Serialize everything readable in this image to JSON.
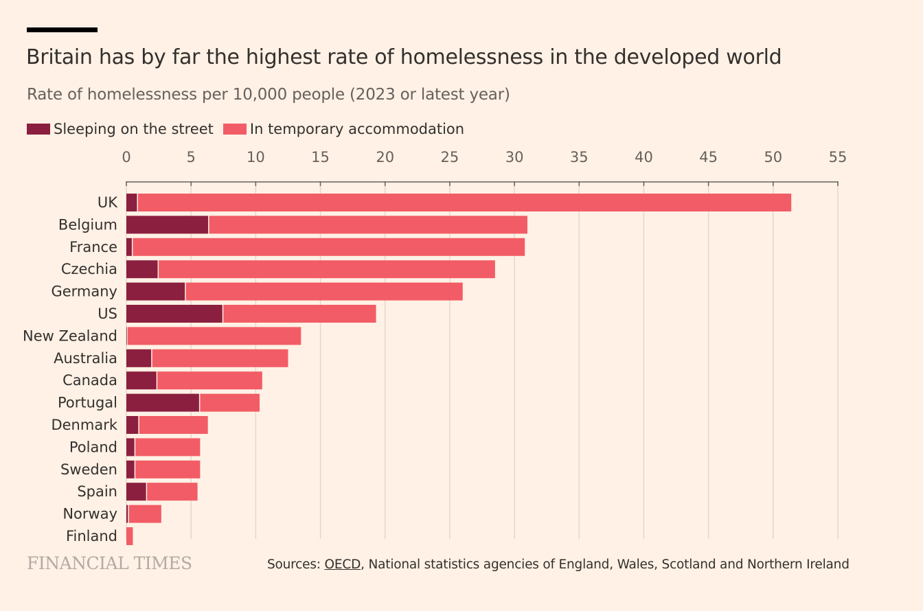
{
  "chart_data": {
    "type": "bar",
    "orientation": "horizontal",
    "stacked": true,
    "title": "Britain has by far the highest rate of homelessness in the developed world",
    "subtitle": "Rate of homelessness per 10,000 people (2023 or latest year)",
    "categories": [
      "UK",
      "Belgium",
      "France",
      "Czechia",
      "Germany",
      "US",
      "New Zealand",
      "Australia",
      "Canada",
      "Portugal",
      "Denmark",
      "Poland",
      "Sweden",
      "Spain",
      "Norway",
      "Finland"
    ],
    "series": [
      {
        "name": "Sleeping on the street",
        "color": "#8b1f3f",
        "values": [
          0.9,
          6.4,
          0.5,
          2.5,
          4.6,
          7.5,
          0.1,
          2.0,
          2.4,
          5.7,
          1.0,
          0.7,
          0.7,
          1.6,
          0.2,
          0.0
        ]
      },
      {
        "name": "In temporary accommodation",
        "color": "#f25c66",
        "values": [
          50.5,
          24.6,
          30.3,
          26.0,
          21.4,
          11.8,
          13.4,
          10.5,
          8.1,
          4.6,
          5.3,
          5.0,
          5.0,
          3.9,
          2.5,
          0.5
        ]
      }
    ],
    "xlim": [
      0,
      55
    ],
    "xticks": [
      0,
      5,
      10,
      15,
      20,
      25,
      30,
      35,
      40,
      45,
      50,
      55
    ],
    "xaxis_position": "top",
    "grid": true,
    "legend_position": "top-left"
  },
  "footer": {
    "brand": "FINANCIAL TIMES",
    "sources_prefix": "Sources: ",
    "sources_link": "OECD",
    "sources_rest": ", National statistics agencies of England, Wales, Scotland and Northern Ireland"
  }
}
